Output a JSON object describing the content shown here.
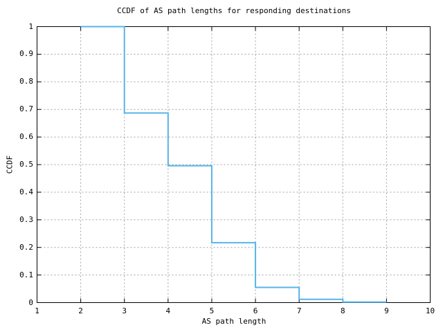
{
  "chart_data": {
    "type": "line",
    "subtype": "step",
    "title": "CCDF of AS path lengths for responding destinations",
    "xlabel": "AS path length",
    "ylabel": "CCDF",
    "xlim": [
      1,
      10
    ],
    "ylim": [
      0,
      1
    ],
    "grid": true,
    "legend_position": "none",
    "x_ticks": [
      {
        "v": 1,
        "label": "1"
      },
      {
        "v": 2,
        "label": "2"
      },
      {
        "v": 3,
        "label": "3"
      },
      {
        "v": 4,
        "label": "4"
      },
      {
        "v": 5,
        "label": "5"
      },
      {
        "v": 6,
        "label": "6"
      },
      {
        "v": 7,
        "label": "7"
      },
      {
        "v": 8,
        "label": "8"
      },
      {
        "v": 9,
        "label": "9"
      },
      {
        "v": 10,
        "label": "10"
      }
    ],
    "y_ticks": [
      {
        "v": 0,
        "label": "0"
      },
      {
        "v": 0.1,
        "label": "0.1"
      },
      {
        "v": 0.2,
        "label": "0.2"
      },
      {
        "v": 0.3,
        "label": "0.3"
      },
      {
        "v": 0.4,
        "label": "0.4"
      },
      {
        "v": 0.5,
        "label": "0.5"
      },
      {
        "v": 0.6,
        "label": "0.6"
      },
      {
        "v": 0.7,
        "label": "0.7"
      },
      {
        "v": 0.8,
        "label": "0.8"
      },
      {
        "v": 0.9,
        "label": "0.9"
      },
      {
        "v": 1,
        "label": "1"
      }
    ],
    "series": [
      {
        "name": "ccdf",
        "color": "#56b4e9",
        "steps": [
          {
            "x_start": 2,
            "x_end": 3,
            "y": 1.0
          },
          {
            "x_start": 3,
            "x_end": 4,
            "y": 0.687
          },
          {
            "x_start": 4,
            "x_end": 5,
            "y": 0.496
          },
          {
            "x_start": 5,
            "x_end": 6,
            "y": 0.217
          },
          {
            "x_start": 6,
            "x_end": 7,
            "y": 0.055
          },
          {
            "x_start": 7,
            "x_end": 8,
            "y": 0.012
          },
          {
            "x_start": 8,
            "x_end": 9,
            "y": 0.002
          }
        ]
      }
    ],
    "colors": {
      "background": "#ffffff",
      "axis": "#000000",
      "grid": "#a0a0a0",
      "text": "#000000"
    }
  }
}
